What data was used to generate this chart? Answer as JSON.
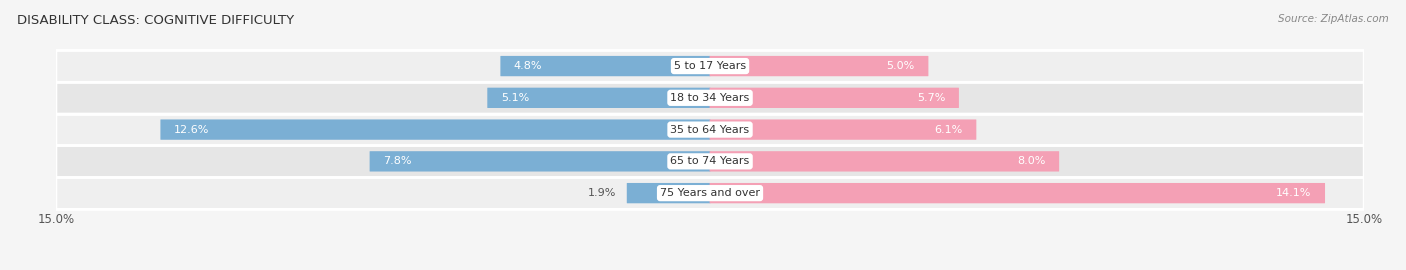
{
  "title": "DISABILITY CLASS: COGNITIVE DIFFICULTY",
  "source": "Source: ZipAtlas.com",
  "categories": [
    "5 to 17 Years",
    "18 to 34 Years",
    "35 to 64 Years",
    "65 to 74 Years",
    "75 Years and over"
  ],
  "male_values": [
    4.8,
    5.1,
    12.6,
    7.8,
    1.9
  ],
  "female_values": [
    5.0,
    5.7,
    6.1,
    8.0,
    14.1
  ],
  "male_color": "#7bafd4",
  "female_color": "#f4a0b5",
  "female_color_large": "#f06090",
  "male_color_large": "#5a9ec8",
  "row_bg_light": "#f0f0f0",
  "row_bg_dark": "#e4e4e4",
  "axis_max": 15.0,
  "title_fontsize": 9.5,
  "label_fontsize": 8.0,
  "category_fontsize": 8.0,
  "legend_fontsize": 9,
  "axis_label_fontsize": 8.5,
  "source_fontsize": 7.5
}
